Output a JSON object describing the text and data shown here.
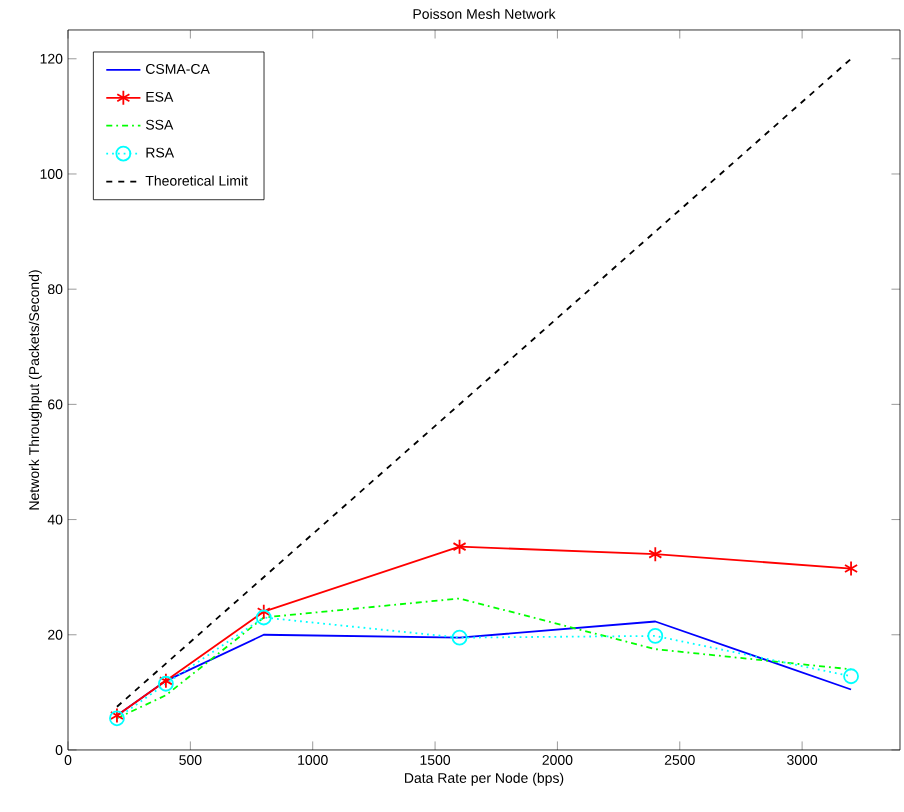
{
  "chart_data": {
    "type": "line",
    "title": "Poisson Mesh Network",
    "xlabel": "Data Rate per Node (bps)",
    "ylabel": "Network Throughput (Packets/Second)",
    "x": [
      200,
      400,
      800,
      1600,
      2400,
      3200
    ],
    "series": [
      {
        "name": "CSMA-CA",
        "color": "#0000ff",
        "marker": "none",
        "line_style": "solid",
        "values": [
          6,
          12,
          20,
          19.5,
          22.3,
          10.5
        ]
      },
      {
        "name": "ESA",
        "color": "#ff0000",
        "marker": "cross",
        "line_style": "solid",
        "values": [
          6,
          12,
          24,
          35.3,
          34,
          31.5
        ]
      },
      {
        "name": "SSA",
        "color": "#00ff00",
        "marker": "none",
        "line_style": "dashdot",
        "values": [
          5.5,
          9.5,
          23,
          26.3,
          17.5,
          14
        ]
      },
      {
        "name": "RSA",
        "color": "#00ffff",
        "marker": "circle",
        "line_style": "dotted",
        "values": [
          5.5,
          11.5,
          23,
          19.5,
          19.8,
          12.8
        ]
      },
      {
        "name": "Theoretical Limit",
        "color": "#000000",
        "marker": "none",
        "line_style": "dashed",
        "x": [
          200,
          3200
        ],
        "values": [
          7.5,
          120
        ]
      }
    ],
    "xlim": [
      0,
      3400
    ],
    "ylim": [
      0,
      125
    ],
    "xticks": [
      0,
      500,
      1000,
      1500,
      2000,
      2500,
      3000
    ],
    "yticks": [
      0,
      20,
      40,
      60,
      80,
      100,
      120
    ],
    "grid": false,
    "legend": "top left"
  }
}
